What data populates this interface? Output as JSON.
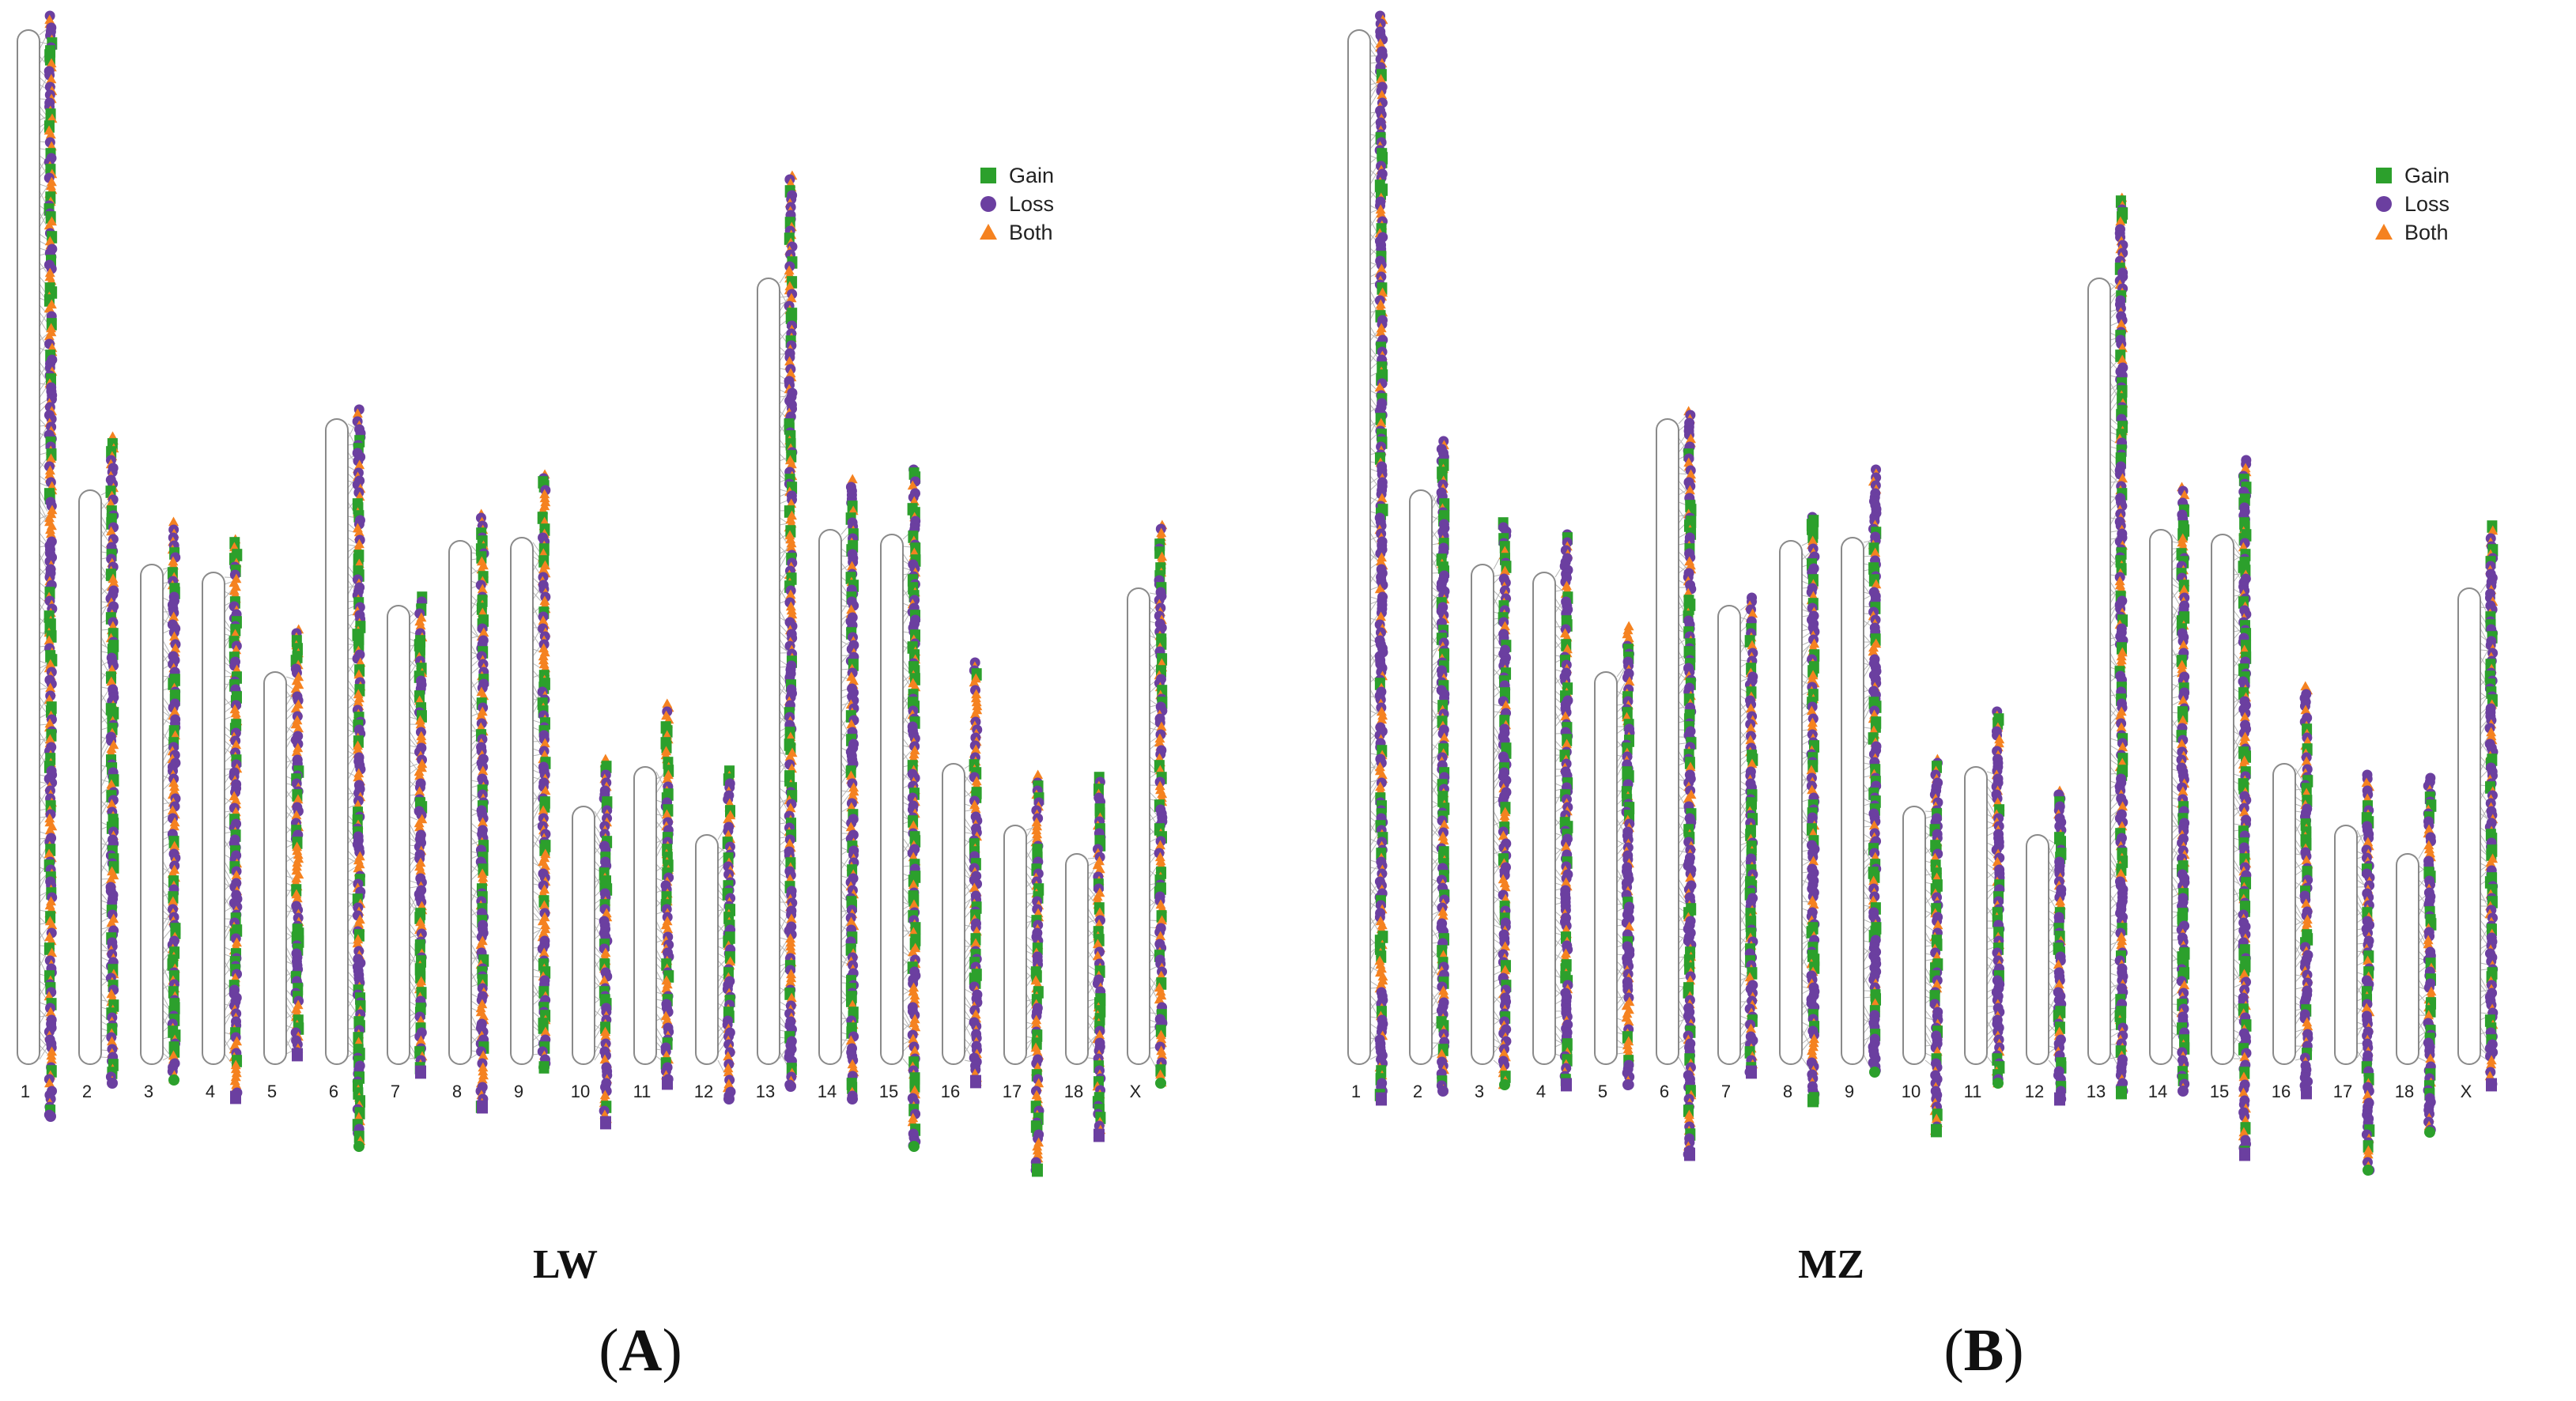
{
  "legend": {
    "items": [
      {
        "key": "gain",
        "label": "Gain",
        "color": "#2ca02c",
        "shape": "square"
      },
      {
        "key": "loss",
        "label": "Loss",
        "color": "#6b3fa0",
        "shape": "circle"
      },
      {
        "key": "both",
        "label": "Both",
        "color": "#f58220",
        "shape": "triangle"
      }
    ]
  },
  "chromosomes": [
    "1",
    "2",
    "3",
    "4",
    "5",
    "6",
    "7",
    "8",
    "9",
    "10",
    "11",
    "12",
    "13",
    "14",
    "15",
    "16",
    "17",
    "18",
    "X"
  ],
  "panels": [
    {
      "id": "A",
      "name": "LW",
      "letter_open": "(",
      "letter": "A",
      "letter_close": ")"
    },
    {
      "id": "B",
      "name": "MZ",
      "letter_open": "(",
      "letter": "B",
      "letter_close": ")"
    }
  ],
  "colors": {
    "outline": "#8a8a8a",
    "line": "#7a7a7a"
  }
}
